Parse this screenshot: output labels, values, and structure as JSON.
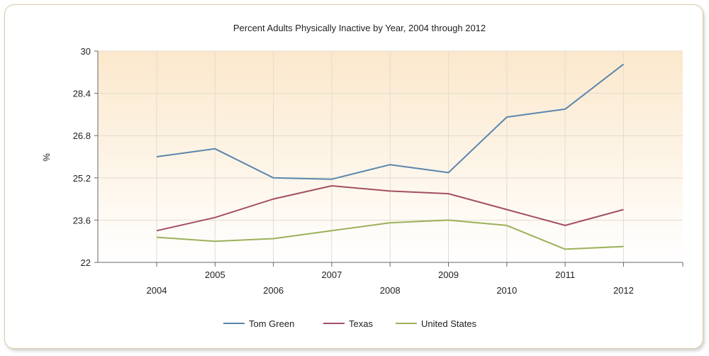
{
  "chart_data": {
    "type": "line",
    "title": "Percent Adults Physically Inactive by Year, 2004 through 2012",
    "xlabel": "",
    "ylabel": "%",
    "x": [
      "2004",
      "2005",
      "2006",
      "2007",
      "2008",
      "2009",
      "2010",
      "2011",
      "2012"
    ],
    "ylim": [
      22,
      30
    ],
    "yticks": [
      "22",
      "23.6",
      "25.2",
      "26.8",
      "28.4",
      "30"
    ],
    "series": [
      {
        "name": "Tom Green",
        "color": "#5b86ad",
        "values": [
          26.0,
          26.3,
          25.2,
          25.15,
          25.7,
          25.4,
          27.5,
          27.8,
          29.5
        ]
      },
      {
        "name": "Texas",
        "color": "#a34f63",
        "values": [
          23.2,
          23.7,
          24.4,
          24.9,
          24.7,
          24.6,
          24.0,
          23.4,
          24.0
        ]
      },
      {
        "name": "United States",
        "color": "#9db05a",
        "values": [
          22.95,
          22.8,
          22.9,
          23.2,
          23.5,
          23.6,
          23.4,
          22.5,
          22.6
        ]
      }
    ],
    "grid": true,
    "legend_position": "bottom"
  }
}
